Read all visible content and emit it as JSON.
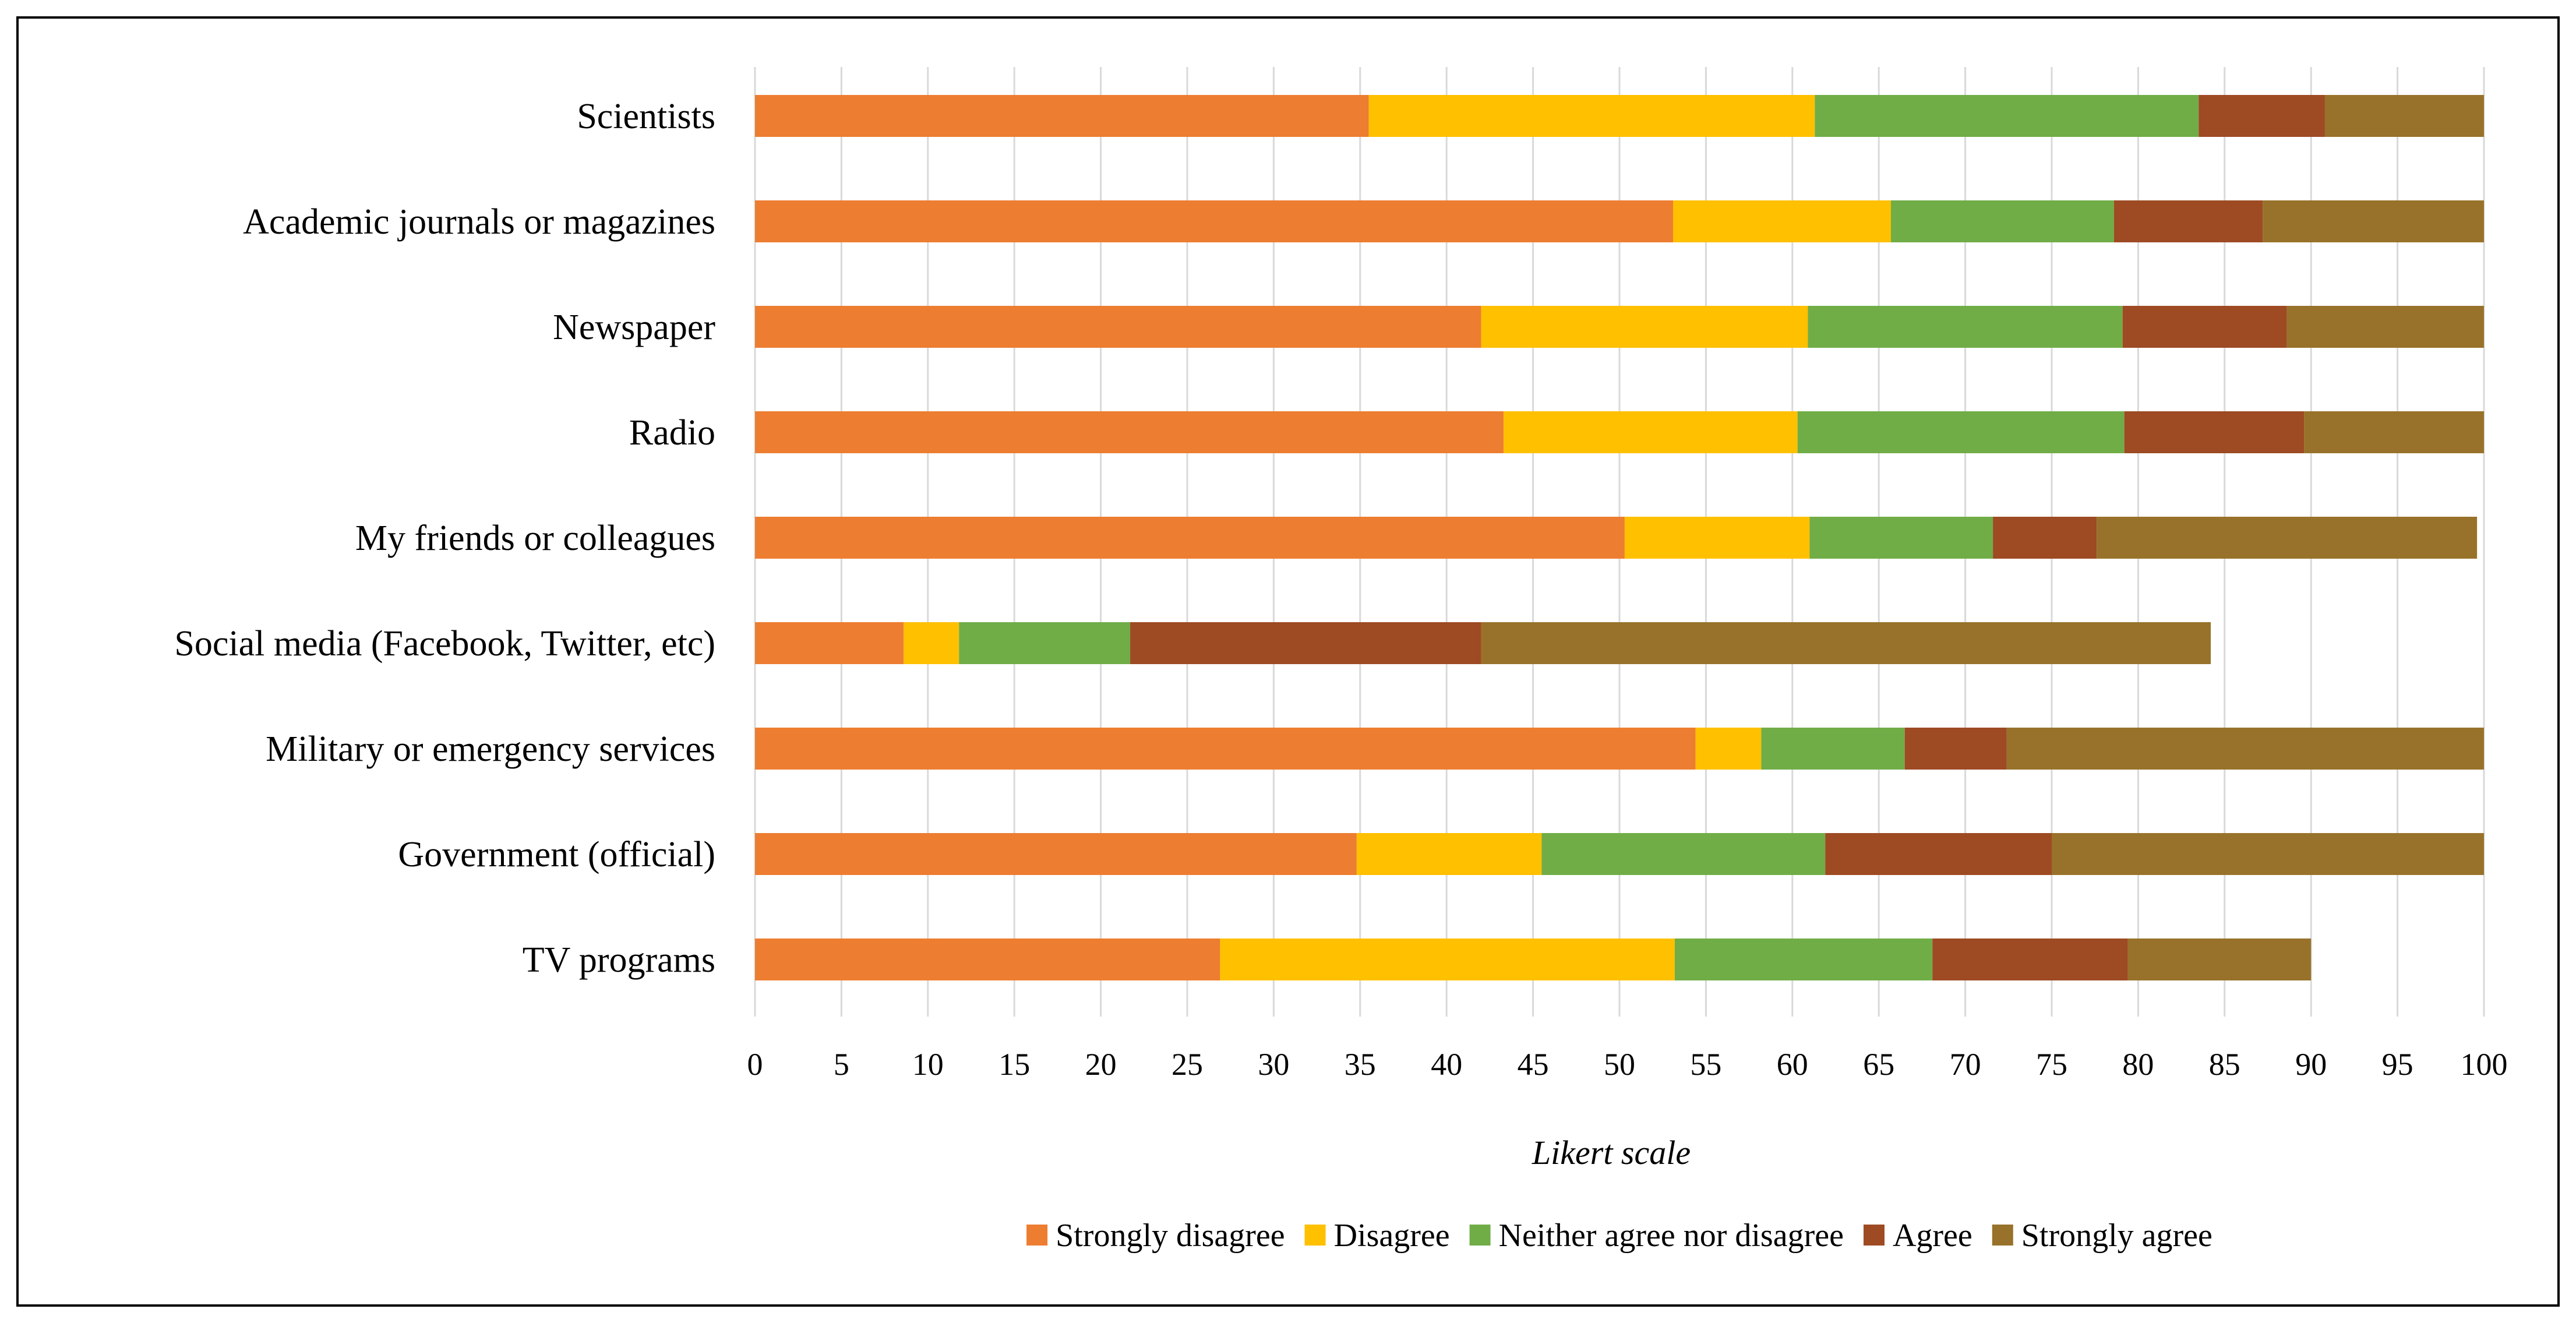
{
  "chart_data": {
    "type": "bar",
    "orientation": "horizontal",
    "stacked": true,
    "categories": [
      "Scientists",
      "Academic journals or magazines",
      "Newspaper",
      "Radio",
      "My friends or colleagues",
      "Social media (Facebook, Twitter, etc)",
      "Military or emergency services",
      "Government (official)",
      "TV programs"
    ],
    "series": [
      {
        "name": "Strongly disagree",
        "color": "#ED7D31",
        "values": [
          35.5,
          53.1,
          42.0,
          43.3,
          50.3,
          8.6,
          54.4,
          34.8,
          26.9
        ]
      },
      {
        "name": "Disagree",
        "color": "#FFC000",
        "values": [
          25.8,
          12.6,
          18.9,
          17.0,
          10.7,
          3.2,
          3.8,
          10.7,
          26.3
        ]
      },
      {
        "name": "Neither agree nor disagree",
        "color": "#70AD47",
        "values": [
          22.2,
          12.9,
          18.2,
          18.9,
          10.6,
          9.9,
          8.3,
          16.4,
          14.9
        ]
      },
      {
        "name": "Agree",
        "color": "#9E4A23",
        "values": [
          7.3,
          8.6,
          9.5,
          10.4,
          6.0,
          20.3,
          5.9,
          13.1,
          11.3
        ]
      },
      {
        "name": "Strongly agree",
        "color": "#98722A",
        "values": [
          9.2,
          12.8,
          11.4,
          10.4,
          22.0,
          42.2,
          27.6,
          25.0,
          10.6
        ]
      }
    ],
    "xlabel": "Likert scale",
    "ylabel": "",
    "xlim": [
      0,
      100
    ],
    "xticks": [
      "0",
      "5",
      "10",
      "15",
      "20",
      "25",
      "30",
      "35",
      "40",
      "45",
      "50",
      "55",
      "60",
      "65",
      "70",
      "75",
      "80",
      "85",
      "90",
      "95",
      "100"
    ],
    "grid": true,
    "legend_position": "bottom"
  }
}
